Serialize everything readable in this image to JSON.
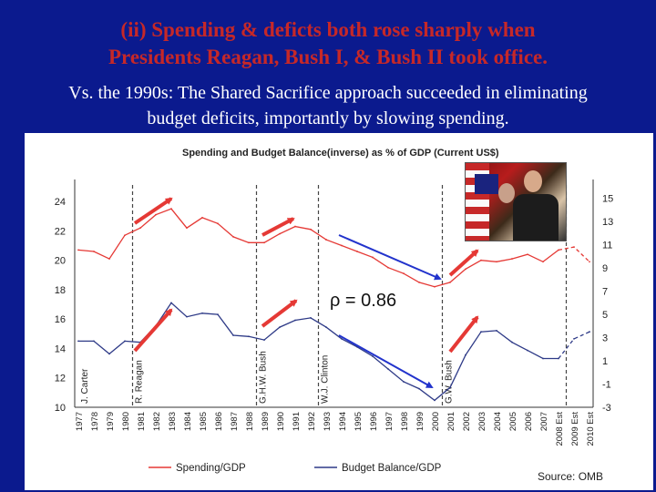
{
  "slide": {
    "title_lines": [
      "(ii) Spending & deficts both rose sharply when",
      "Presidents Reagan, Bush I, & Bush II took office."
    ],
    "subtitle_lines": [
      "Vs. the 1990s: The Shared Sacrifice approach succeeded in eliminating",
      "budget deficits, importantly by slowing spending."
    ]
  },
  "colors": {
    "background": "#0b1a8e",
    "title": "#c62828",
    "spending": "#e53935",
    "balance": "#2e3a87",
    "arrow_up": "#e53935",
    "arrow_down": "#2233cc"
  },
  "chart_data": {
    "type": "line",
    "title": "Spending and Budget Balance(inverse) as % of GDP (Current US$)",
    "source": "Source:   OMB",
    "annotation": "ρ = 0.86",
    "categories": [
      "1977",
      "1978",
      "1979",
      "1980",
      "1981",
      "1982",
      "1983",
      "1984",
      "1985",
      "1986",
      "1987",
      "1988",
      "1989",
      "1990",
      "1991",
      "1992",
      "1993",
      "1994",
      "1995",
      "1996",
      "1997",
      "1998",
      "1999",
      "2000",
      "2001",
      "2002",
      "2003",
      "2004",
      "2005",
      "2006",
      "2007",
      "2008 Est",
      "2009 Est",
      "2010 Est"
    ],
    "left_axis": {
      "ticks": [
        10,
        12,
        14,
        16,
        18,
        20,
        22,
        24
      ],
      "range": [
        10,
        25
      ]
    },
    "right_axis": {
      "ticks": [
        -3,
        -1,
        1,
        3,
        5,
        7,
        9,
        11,
        13,
        15
      ],
      "range": [
        -3,
        16
      ]
    },
    "series": [
      {
        "name": "Spending/GDP",
        "axis": "left",
        "values": [
          20.7,
          20.6,
          20.1,
          21.7,
          22.2,
          23.1,
          23.5,
          22.2,
          22.9,
          22.5,
          21.6,
          21.2,
          21.2,
          21.8,
          22.3,
          22.1,
          21.4,
          21.0,
          20.6,
          20.2,
          19.5,
          19.1,
          18.5,
          18.2,
          18.5,
          19.4,
          20.0,
          19.9,
          20.1,
          20.4,
          19.9,
          20.7,
          20.9,
          19.9
        ]
      },
      {
        "name": "Budget Balance/GDP",
        "axis": "right",
        "values": [
          2.7,
          2.7,
          1.6,
          2.7,
          2.6,
          4.0,
          6.0,
          4.8,
          5.1,
          5.0,
          3.2,
          3.1,
          2.8,
          3.9,
          4.5,
          4.7,
          3.9,
          2.9,
          2.2,
          1.4,
          0.3,
          -0.8,
          -1.4,
          -2.4,
          -1.3,
          1.5,
          3.5,
          3.6,
          2.6,
          1.9,
          1.2,
          1.2,
          2.9,
          3.5
        ]
      }
    ],
    "projection_start": "2008 Est",
    "presidents": [
      {
        "label": "J. Carter",
        "year": "1977"
      },
      {
        "label": "R. Reagan",
        "year": "1981"
      },
      {
        "label": "G.H.W. Bush",
        "year": "1989"
      },
      {
        "label": "W.J. Clinton",
        "year": "1993"
      },
      {
        "label": "G.W. Bush",
        "year": "2001"
      }
    ],
    "grid": false,
    "legend_position": "bottom"
  }
}
